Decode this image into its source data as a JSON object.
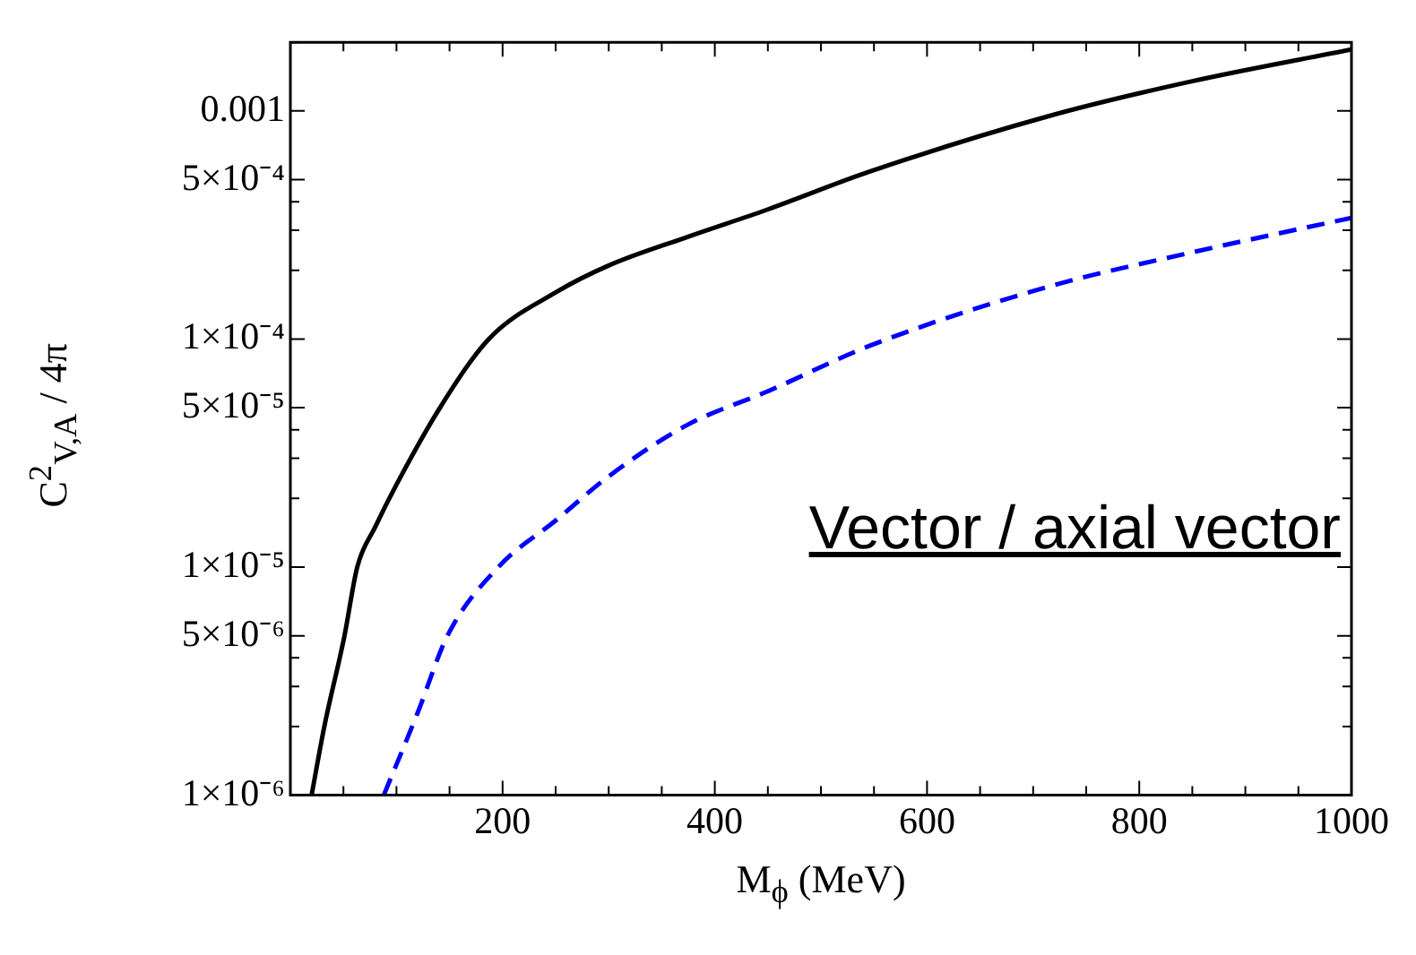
{
  "chart_data": {
    "type": "line",
    "xlabel": "M$_{ϕ}$ (MeV)",
    "ylabel": "C$^{2}$$_{V,A}$ / 4π",
    "annotations": [
      "Vector / axial vector"
    ],
    "log": "y",
    "grid": false,
    "legend": false,
    "marker": "none",
    "xlim": [
      0,
      1000
    ],
    "ylim": [
      1e-06,
      0.002
    ],
    "xticks": [
      {
        "value": 50,
        "label": null
      },
      {
        "value": 100,
        "label": null
      },
      {
        "value": 150,
        "label": null
      },
      200,
      {
        "value": 250,
        "label": null
      },
      {
        "value": 300,
        "label": null
      },
      {
        "value": 350,
        "label": null
      },
      400,
      {
        "value": 450,
        "label": null
      },
      {
        "value": 500,
        "label": null
      },
      {
        "value": 550,
        "label": null
      },
      600,
      {
        "value": 650,
        "label": null
      },
      {
        "value": 700,
        "label": null
      },
      {
        "value": 750,
        "label": null
      },
      800,
      {
        "value": 850,
        "label": null
      },
      {
        "value": 900,
        "label": null
      },
      {
        "value": 950,
        "label": null
      },
      1000
    ],
    "yticks": [
      {
        "value": 1e-06,
        "label": "1×10⁻⁶"
      },
      {
        "value": 2e-06,
        "label": null
      },
      {
        "value": 3e-06,
        "label": null
      },
      {
        "value": 4e-06,
        "label": null
      },
      {
        "value": 5e-06,
        "label": "5×10⁻⁶"
      },
      {
        "value": 1e-05,
        "label": "1×10⁻⁵"
      },
      {
        "value": 2e-05,
        "label": null
      },
      {
        "value": 3e-05,
        "label": null
      },
      {
        "value": 4e-05,
        "label": null
      },
      {
        "value": 5e-05,
        "label": "5×10⁻⁵"
      },
      {
        "value": 0.0001,
        "label": "1×10⁻⁴"
      },
      {
        "value": 0.0002,
        "label": null
      },
      {
        "value": 0.0003,
        "label": null
      },
      {
        "value": 0.0004,
        "label": null
      },
      {
        "value": 0.0005,
        "label": "5×10⁻⁴"
      },
      {
        "value": 0.001,
        "label": "0.001"
      },
      {
        "value": 0.002,
        "label": null
      }
    ],
    "series": [
      {
        "color": "#000000",
        "line_style": "solid",
        "x": [
          20,
          32,
          51,
          63,
          80,
          100,
          141,
          187,
          250,
          300,
          374,
          450,
          545,
          715,
          850,
          1000
        ],
        "values": [
          1e-06,
          2e-06,
          5e-06,
          1e-05,
          1.5e-05,
          2.3e-05,
          5e-05,
          0.0001,
          0.00016,
          0.00021,
          0.00028,
          0.00037,
          0.00054,
          0.00095,
          0.00135,
          0.00186
        ]
      },
      {
        "color": "#0000ff",
        "line_style": "dashed",
        "x": [
          88,
          120,
          148,
          196,
          250,
          300,
          374,
          450,
          545,
          715,
          850,
          1000
        ],
        "values": [
          1e-06,
          2.3e-06,
          5e-06,
          1e-05,
          1.6e-05,
          2.5e-05,
          4.2e-05,
          5.9e-05,
          9.3e-05,
          0.00017,
          0.00024,
          0.00034
        ]
      }
    ]
  }
}
